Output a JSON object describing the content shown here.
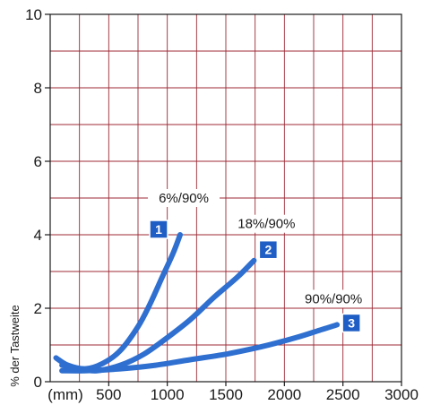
{
  "chart_data": {
    "type": "line",
    "title": "",
    "xlabel": "",
    "x_unit_label": "(mm)",
    "ylabel": "% der Tastweite",
    "xlim": [
      0,
      3000
    ],
    "ylim": [
      0,
      10
    ],
    "x_ticks": [
      "500",
      "1000",
      "1500",
      "2000",
      "2500",
      "3000"
    ],
    "y_ticks": [
      "0",
      "2",
      "4",
      "6",
      "8",
      "10"
    ],
    "grid": true,
    "line_color": "#2e6fd0",
    "badge_color": "#1f5ec4",
    "grid_color": "#9c2a35",
    "series": [
      {
        "name": "6%/90%",
        "marker": "1",
        "x": [
          50,
          150,
          300,
          450,
          600,
          750,
          850,
          950,
          1050,
          1110
        ],
        "y": [
          0.65,
          0.45,
          0.35,
          0.5,
          0.85,
          1.5,
          2.1,
          2.8,
          3.5,
          4.0
        ]
      },
      {
        "name": "18%/90%",
        "marker": "2",
        "x": [
          100,
          250,
          400,
          600,
          800,
          1000,
          1200,
          1400,
          1600,
          1740
        ],
        "y": [
          0.45,
          0.35,
          0.3,
          0.45,
          0.75,
          1.2,
          1.7,
          2.3,
          2.85,
          3.3
        ]
      },
      {
        "name": "90%/90%",
        "marker": "3",
        "x": [
          100,
          300,
          600,
          900,
          1200,
          1500,
          1800,
          2100,
          2300,
          2450
        ],
        "y": [
          0.3,
          0.3,
          0.35,
          0.45,
          0.6,
          0.75,
          0.95,
          1.2,
          1.4,
          1.55
        ]
      }
    ]
  }
}
